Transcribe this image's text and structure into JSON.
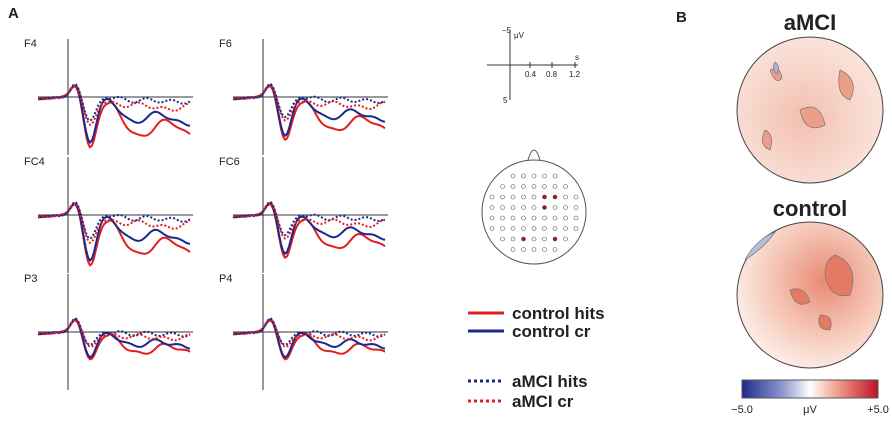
{
  "panels": {
    "a": "A",
    "b": "B"
  },
  "electrodes": [
    "F4",
    "F6",
    "FC4",
    "FC6",
    "P3",
    "P4"
  ],
  "scale_bar": {
    "neg": "−5",
    "unit_v": "μV",
    "ticks": [
      "0.4",
      "0.8",
      "1.2"
    ],
    "unit_t": "s",
    "pos": "5"
  },
  "legend": [
    "control hits",
    "control cr",
    "aMCI hits",
    "aMCI cr"
  ],
  "topomaps": [
    "aMCI",
    "control"
  ],
  "colorbar": {
    "min": "−5.0",
    "unit": "μV",
    "max": "+5.0"
  }
}
